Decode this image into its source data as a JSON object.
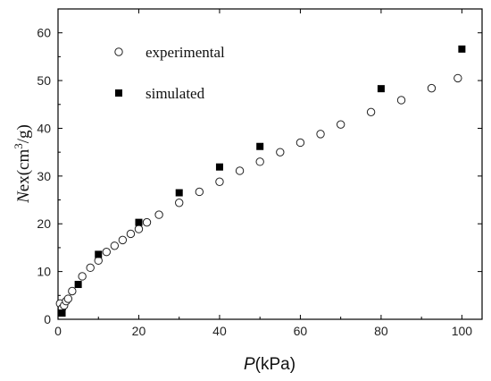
{
  "chart_data": {
    "type": "scatter",
    "xlabel": {
      "italic": "P",
      "rest": "(kPa)"
    },
    "ylabel": {
      "italic": "N",
      "rest": "ex(cm",
      "sup": "3",
      "rest2": "/g)"
    },
    "xlim": [
      0,
      105
    ],
    "ylim": [
      0,
      65
    ],
    "xticks": [
      0,
      20,
      40,
      60,
      80,
      100
    ],
    "yticks": [
      0,
      10,
      20,
      30,
      40,
      50,
      60
    ],
    "grid": false,
    "legend_position": "top-left",
    "series": [
      {
        "name": "experimental",
        "marker": "open-circle",
        "x": [
          0.5,
          1,
          1.5,
          2,
          2.5,
          3.5,
          6,
          8,
          10,
          12,
          14,
          16,
          18,
          20,
          22,
          25,
          30,
          35,
          40,
          45,
          50,
          55,
          60,
          65,
          70,
          77.5,
          85,
          92.5,
          99
        ],
        "y": [
          3.3,
          2.3,
          2.9,
          3.8,
          4.3,
          5.9,
          9.0,
          10.8,
          12.3,
          14.1,
          15.4,
          16.6,
          17.9,
          18.9,
          20.3,
          21.9,
          24.4,
          26.7,
          28.8,
          31.1,
          33.0,
          35.0,
          37.0,
          38.8,
          40.8,
          43.4,
          45.9,
          48.4,
          50.5
        ]
      },
      {
        "name": "simulated",
        "marker": "filled-square",
        "x": [
          1,
          5,
          10,
          20,
          30,
          40,
          50,
          80,
          100
        ],
        "y": [
          1.3,
          7.3,
          13.6,
          20.3,
          26.5,
          31.9,
          36.2,
          48.3,
          56.6
        ]
      }
    ]
  }
}
